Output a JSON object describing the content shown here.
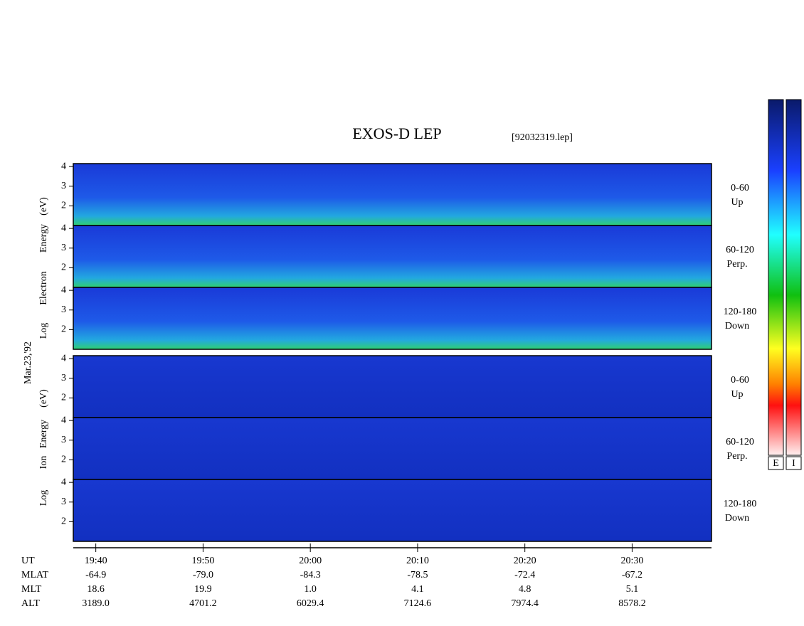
{
  "title": "EXOS-D LEP",
  "file_label": "[92032319.lep]",
  "date_label": "Mar.23,'92",
  "panel_ylim": [
    1,
    4.15
  ],
  "panel_yticks": [
    2,
    3,
    4
  ],
  "species": [
    {
      "axis_label": [
        "Log",
        "Electron",
        "Energy",
        "(eV)"
      ],
      "channels": [
        {
          "range": "0-60",
          "direction": "Up"
        },
        {
          "range": "60-120",
          "direction": "Perp."
        },
        {
          "range": "120-180",
          "direction": "Down"
        }
      ]
    },
    {
      "axis_label": [
        "Log",
        "Ion",
        "Energy",
        "(eV)"
      ],
      "channels": [
        {
          "range": "0-60",
          "direction": "Up"
        },
        {
          "range": "60-120",
          "direction": "Perp."
        },
        {
          "range": "120-180",
          "direction": "Down"
        }
      ]
    }
  ],
  "time_axis": {
    "xlim": [
      37.9,
      97.4
    ],
    "xticks": [
      {
        "value": 40,
        "label": "19:40"
      },
      {
        "value": 50,
        "label": "19:50"
      },
      {
        "value": 60,
        "label": "20:00"
      },
      {
        "value": 70,
        "label": "20:10"
      },
      {
        "value": 80,
        "label": "20:20"
      },
      {
        "value": 90,
        "label": "20:30"
      }
    ]
  },
  "ephemeris": {
    "row_labels": [
      "UT",
      "MLAT",
      "MLT",
      "ALT"
    ],
    "rows": [
      [
        "-64.9",
        "-79.0",
        "-84.3",
        "-78.5",
        "-72.4",
        "-67.2"
      ],
      [
        "18.6",
        "19.9",
        "1.0",
        "4.1",
        "4.8",
        "5.1"
      ],
      [
        "3189.0",
        "4701.2",
        "6029.4",
        "7124.6",
        "7974.4",
        "8578.2"
      ]
    ]
  },
  "colorbar_labels": [
    "E",
    "I"
  ]
}
